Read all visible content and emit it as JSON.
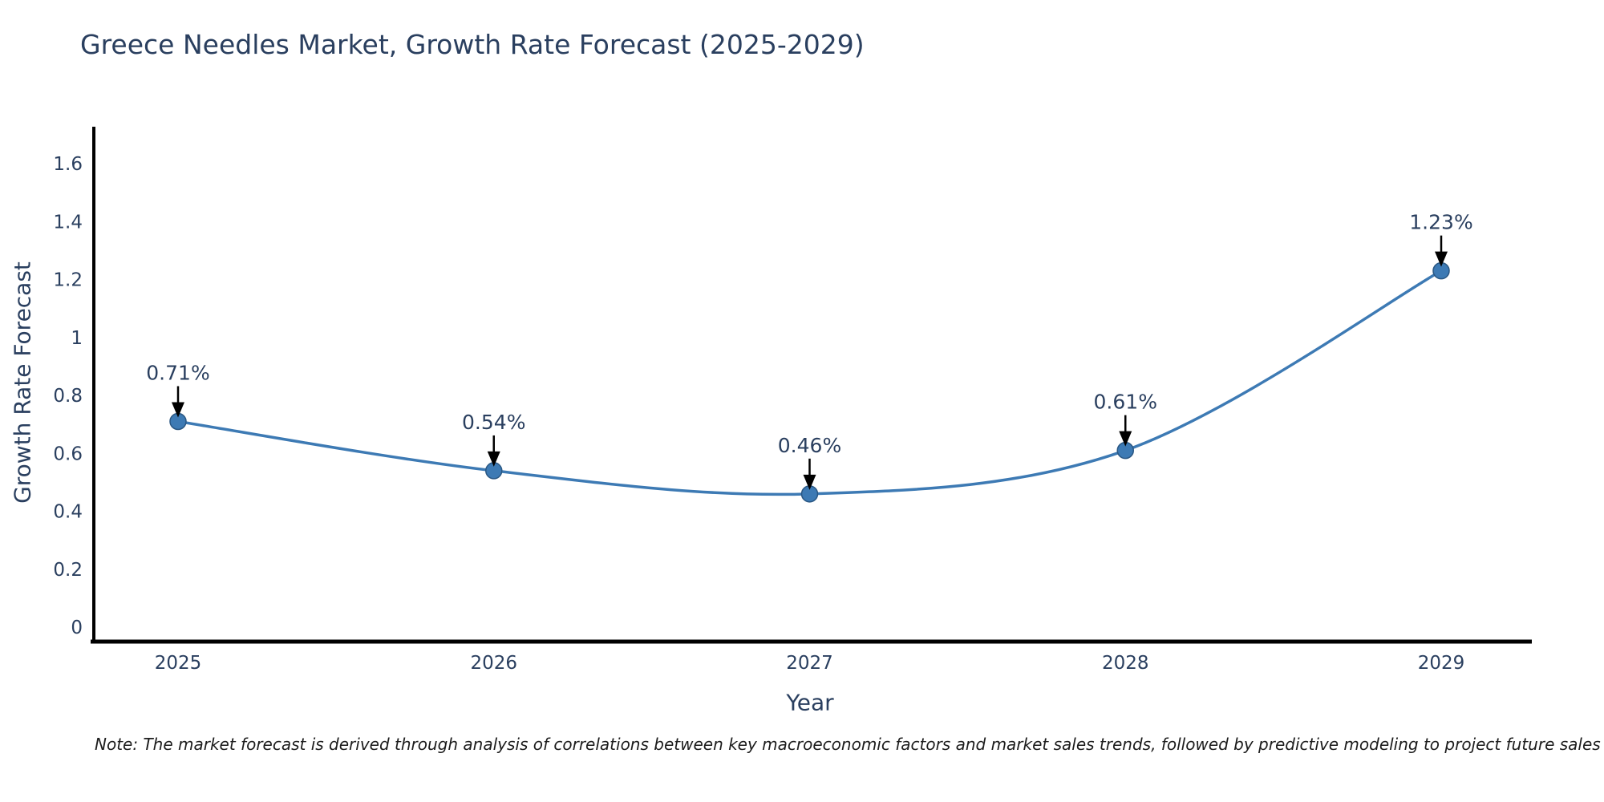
{
  "header": {
    "title": "Greece Needles Market, Growth Rate Forecast (2025-2029)"
  },
  "footnote": {
    "text": "Note: The market forecast is derived through analysis of correlations between key macroeconomic factors and market sales trends, followed by predictive modeling to project future sales"
  },
  "chart_data": {
    "type": "line",
    "title": "Greece Needles Market, Growth Rate Forecast (2025-2029)",
    "xlabel": "Year",
    "ylabel": "Growth Rate Forecast",
    "categories": [
      "2025",
      "2026",
      "2027",
      "2028",
      "2029"
    ],
    "values": [
      0.71,
      0.54,
      0.46,
      0.61,
      1.23
    ],
    "point_labels": [
      "0.71%",
      "0.54%",
      "0.46%",
      "0.61%",
      "1.23%"
    ],
    "ytick_labels": [
      "0",
      "0.2",
      "0.4",
      "0.6",
      "0.8",
      "1",
      "1.2",
      "1.4",
      "1.6"
    ],
    "ytick_values": [
      0,
      0.2,
      0.4,
      0.6,
      0.8,
      1,
      1.2,
      1.4,
      1.6
    ],
    "ylim": [
      0,
      1.7
    ],
    "grid": false,
    "legend": "none",
    "line_style": "spline",
    "colors": {
      "line": "#3d7ab4",
      "marker_fill": "#3d7ab4",
      "marker_edge": "#2a5783",
      "axis_line": "#000000",
      "annotation_arrow": "#000000",
      "text": "#2a3f5f"
    }
  }
}
